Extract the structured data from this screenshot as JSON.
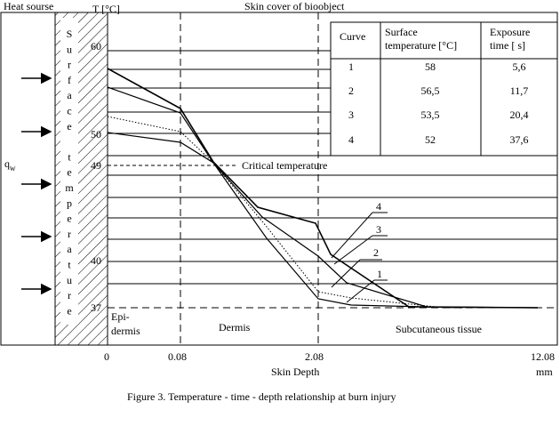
{
  "header": {
    "heat_source": "Heat sourse",
    "t_label": "T [°C]",
    "skin_cover": "Skin cover of bioobject"
  },
  "left_label": {
    "qw": "q",
    "qw_sub": "w",
    "vertical_text": [
      "S",
      "u",
      "r",
      "f",
      "a",
      "c",
      "e",
      "",
      "t",
      "e",
      "m",
      "p",
      "e",
      "r",
      "a",
      "t",
      "u",
      "r",
      "e"
    ]
  },
  "y_ticks": [
    "60",
    "50",
    "49",
    "40",
    "37"
  ],
  "critical_label": "Critical temperature",
  "zones": {
    "epidermis_1": "Epi-",
    "epidermis_2": "dermis",
    "dermis": "Dermis",
    "subcutaneous": "Subcutaneous tissue"
  },
  "x_ticks": [
    "0",
    "0.08",
    "2.08",
    "12.08"
  ],
  "x_unit": "mm",
  "x_label": "Skin Depth",
  "curve_labels": [
    "4",
    "3",
    "2",
    "1"
  ],
  "table": {
    "headers": [
      "Curve",
      "Surface temperature [°C]",
      "Exposure time [ s]"
    ],
    "header_lines": [
      [
        "Curve"
      ],
      [
        "Surface",
        "temperature [°C]"
      ],
      [
        "Exposure",
        "time [ s]"
      ]
    ],
    "rows": [
      [
        "1",
        "58",
        "5,6"
      ],
      [
        "2",
        "56,5",
        "11,7"
      ],
      [
        "3",
        "53,5",
        "20,4"
      ],
      [
        "4",
        "52",
        "37,6"
      ]
    ]
  },
  "caption": "Figure 3.  Temperature - time - depth relationship at burn injury"
}
